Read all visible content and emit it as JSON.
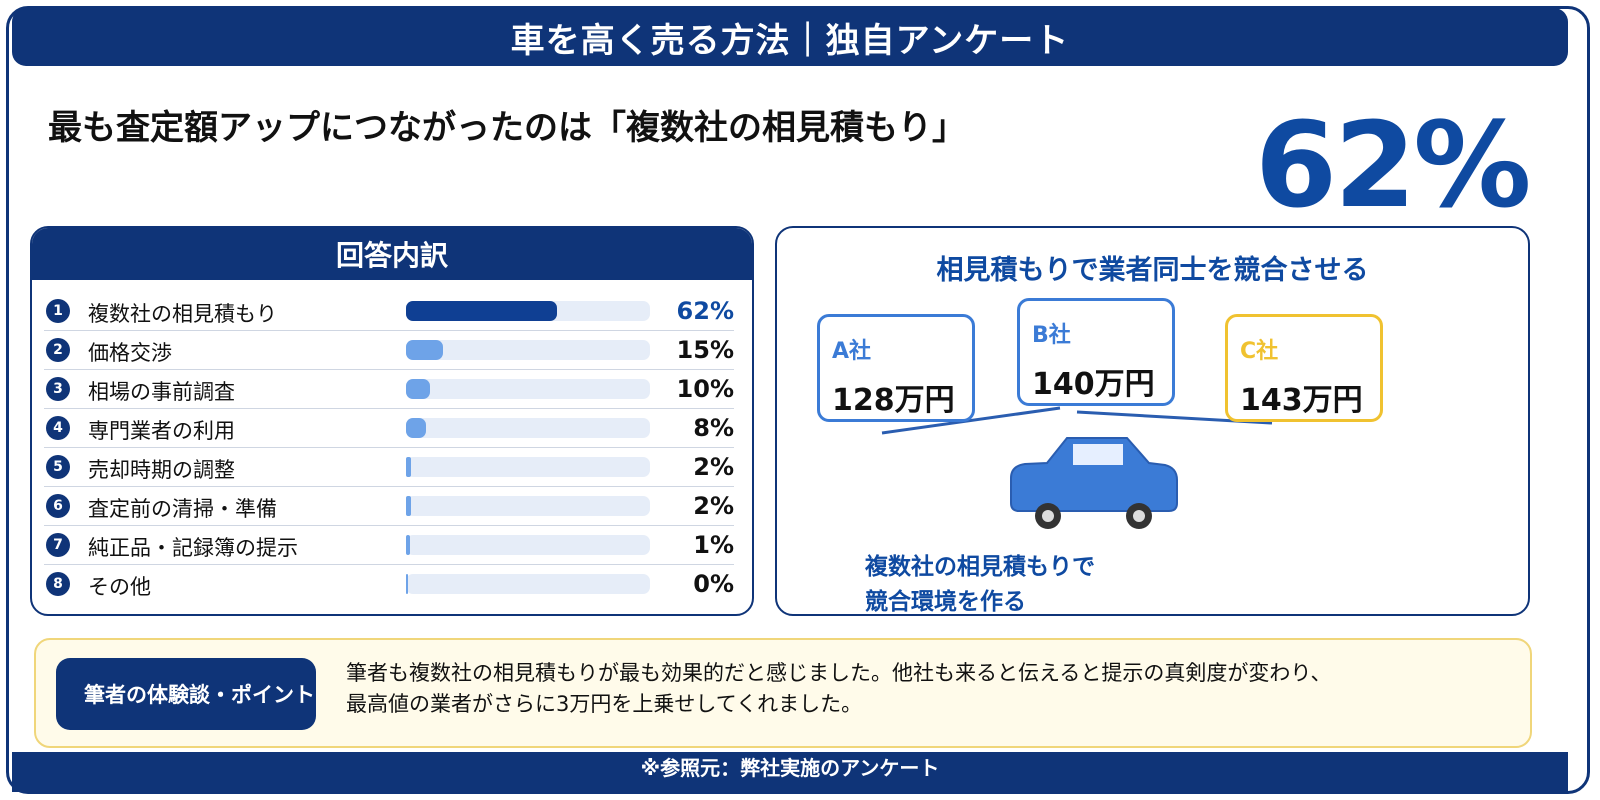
{
  "header": {
    "title": "車を高く売る方法｜独自アンケート"
  },
  "headline": "最も査定額アップにつながったのは「複数社の相見積もり」",
  "highlight_value": "62%",
  "breakdown": {
    "title": "回答内訳",
    "rows": [
      {
        "num": "1",
        "label": "複数社の相見積もり",
        "pct_label": "62%",
        "value": 62
      },
      {
        "num": "2",
        "label": "価格交渉",
        "pct_label": "15%",
        "value": 15
      },
      {
        "num": "3",
        "label": "相場の事前調査",
        "pct_label": "10%",
        "value": 10
      },
      {
        "num": "4",
        "label": "専門業者の利用",
        "pct_label": "8%",
        "value": 8
      },
      {
        "num": "5",
        "label": "売却時期の調整",
        "pct_label": "2%",
        "value": 2
      },
      {
        "num": "6",
        "label": "査定前の清掃・準備",
        "pct_label": "2%",
        "value": 2
      },
      {
        "num": "7",
        "label": "純正品・記録簿の提示",
        "pct_label": "1%",
        "value": 1
      },
      {
        "num": "8",
        "label": "その他",
        "pct_label": "0%",
        "value": 0
      }
    ]
  },
  "chart_data": {
    "type": "bar",
    "categories": [
      "複数社の相見積もり",
      "価格交渉",
      "相場の事前調査",
      "専門業者の利用",
      "売却時期の調整",
      "査定前の清掃・準備",
      "純正品・記録簿の提示",
      "その他"
    ],
    "values": [
      62,
      15,
      10,
      8,
      2,
      2,
      1,
      0
    ],
    "title": "回答内訳",
    "xlabel": "",
    "ylabel": "",
    "ylim": [
      0,
      100
    ],
    "orientation": "horizontal",
    "colors": {
      "top": "#0f3f93",
      "other": "#6ea3e8",
      "track": "#e6edf8"
    }
  },
  "comparison": {
    "title": "相見積もりで業者同士を競合させる",
    "quotes": [
      {
        "name": "A社",
        "price": "128万円"
      },
      {
        "name": "B社",
        "price": "140万円"
      },
      {
        "name": "C社",
        "price": "143万円"
      }
    ],
    "caption_line1": "複数社の相見積もりで",
    "caption_line2": "競合環境を作る"
  },
  "note": {
    "tag": "筆者の体験談・ポイント",
    "line1": "筆者も複数社の相見積もりが最も効果的だと感じました。他社も来ると伝えると提示の真剣度が変わり、",
    "line2": "最高値の業者がさらに3万円を上乗せしてくれました。"
  },
  "footer": {
    "source": "※参照元：弊社実施のアンケート"
  },
  "colors": {
    "navy": "#0f3478",
    "accent_blue": "#0f4aa1",
    "car_blue": "#3b7bd6",
    "gold": "#f0c230",
    "note_bg": "#fffbea"
  }
}
